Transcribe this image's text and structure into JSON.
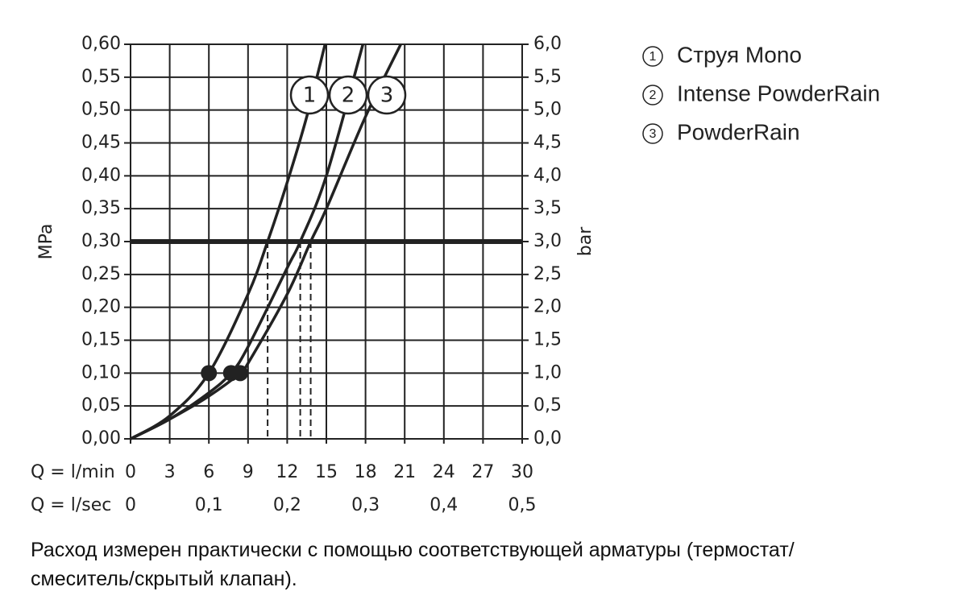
{
  "chart_data": {
    "type": "line",
    "ylabel": "MPa",
    "y2label": "bar",
    "xlabel": "Q = l/min",
    "x2label": "Q = l/sec",
    "xlim": [
      0,
      30
    ],
    "xticks": [
      0,
      3,
      6,
      9,
      12,
      15,
      18,
      21,
      24,
      27,
      30
    ],
    "x2lim": [
      0,
      0.5
    ],
    "x2ticks": [
      0,
      {
        "value": 0.1,
        "label": "0,1"
      },
      {
        "value": 0.2,
        "label": "0,2"
      },
      {
        "value": 0.3,
        "label": "0,3"
      },
      {
        "value": 0.4,
        "label": "0,4"
      },
      {
        "value": 0.5,
        "label": "0,5"
      }
    ],
    "ylim": [
      0,
      0.6
    ],
    "yticks": [
      {
        "value": 0,
        "label": "0,00"
      },
      {
        "value": 0.05,
        "label": "0,05"
      },
      {
        "value": 0.1,
        "label": "0,10"
      },
      {
        "value": 0.15,
        "label": "0,15"
      },
      {
        "value": 0.2,
        "label": "0,20"
      },
      {
        "value": 0.25,
        "label": "0,25"
      },
      {
        "value": 0.3,
        "label": "0,30"
      },
      {
        "value": 0.35,
        "label": "0,35"
      },
      {
        "value": 0.4,
        "label": "0,40"
      },
      {
        "value": 0.45,
        "label": "0,45"
      },
      {
        "value": 0.5,
        "label": "0,50"
      },
      {
        "value": 0.55,
        "label": "0,55"
      },
      {
        "value": 0.6,
        "label": "0,60"
      }
    ],
    "y2lim": [
      0,
      6
    ],
    "y2ticks": [
      {
        "value": 0,
        "label": "0,0"
      },
      {
        "value": 0.5,
        "label": "0,5"
      },
      {
        "value": 1,
        "label": "1,0"
      },
      {
        "value": 1.5,
        "label": "1,5"
      },
      {
        "value": 2,
        "label": "2,0"
      },
      {
        "value": 2.5,
        "label": "2,5"
      },
      {
        "value": 3,
        "label": "3,0"
      },
      {
        "value": 3.5,
        "label": "3,5"
      },
      {
        "value": 4,
        "label": "4,0"
      },
      {
        "value": 4.5,
        "label": "4,5"
      },
      {
        "value": 5,
        "label": "5,0"
      },
      {
        "value": 5.5,
        "label": "5,5"
      },
      {
        "value": 6,
        "label": "6,0"
      }
    ],
    "grid": true,
    "color": "#222222",
    "reference_line": 0.3,
    "series": [
      {
        "name": "Струя Mono",
        "label": "1",
        "x": [
          0,
          3,
          6,
          9,
          10.5,
          12,
          13.5,
          14.9
        ],
        "values": [
          0,
          0.035,
          0.1,
          0.22,
          0.3,
          0.39,
          0.49,
          0.6
        ],
        "marker": [
          6,
          0.1
        ],
        "flow_at_reference": 10.5
      },
      {
        "name": "Intense PowderRain",
        "label": "2",
        "x": [
          0,
          3,
          6,
          7.7,
          9,
          12,
          13,
          15,
          17.8
        ],
        "values": [
          0,
          0.03,
          0.07,
          0.1,
          0.14,
          0.26,
          0.3,
          0.4,
          0.6
        ],
        "marker": [
          7.7,
          0.1
        ],
        "flow_at_reference": 13
      },
      {
        "name": "PowderRain",
        "label": "3",
        "x": [
          0,
          3,
          6,
          8.4,
          9,
          12,
          13.8,
          15,
          18,
          20.7
        ],
        "values": [
          0,
          0.03,
          0.065,
          0.1,
          0.115,
          0.22,
          0.3,
          0.35,
          0.49,
          0.6
        ],
        "marker": [
          8.4,
          0.1
        ],
        "flow_at_reference": 13.8
      }
    ]
  },
  "note": [
    "Расход измерен практически с помощью соответствующей арматуры (термостат/",
    "смеситель/скрытый клапан)."
  ]
}
